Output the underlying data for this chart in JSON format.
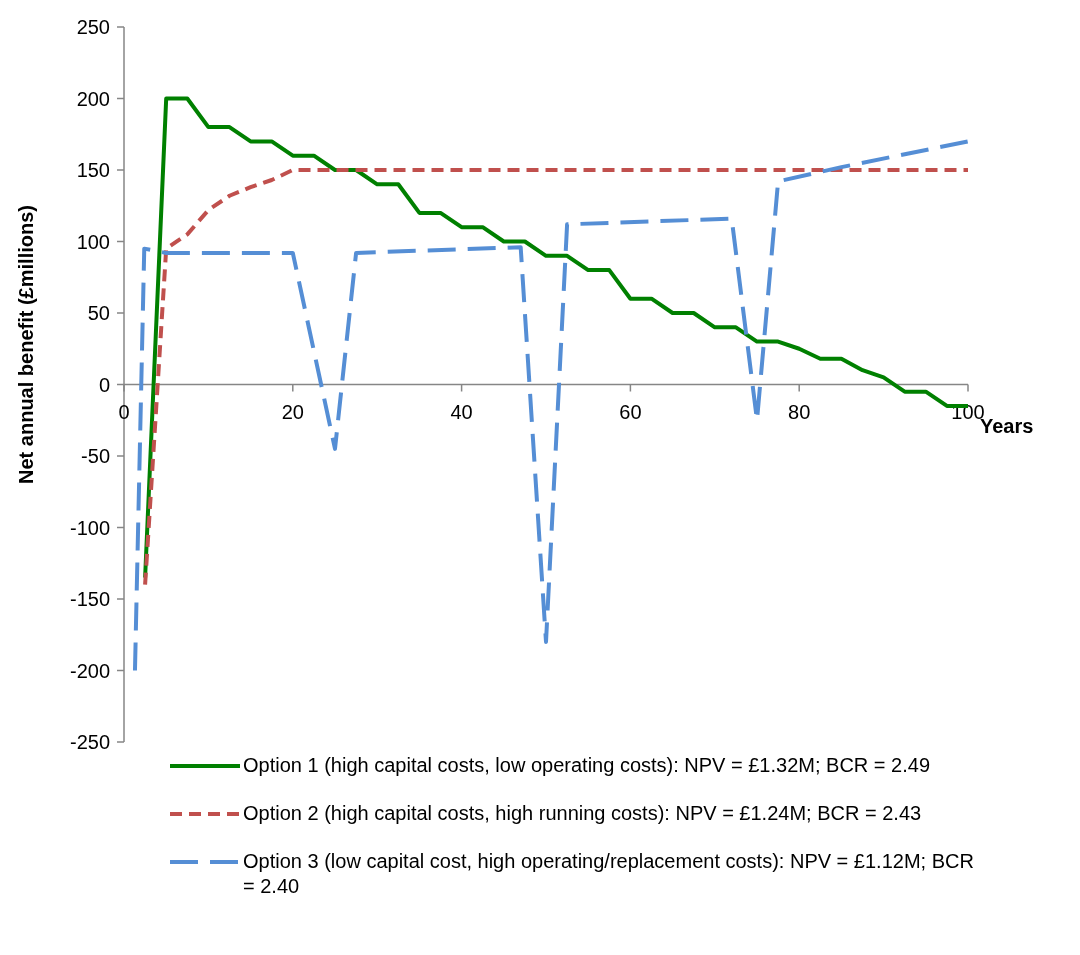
{
  "chart_data": {
    "type": "line",
    "xlabel": "Years",
    "ylabel": "Net annual benefit (£millions)",
    "xlim": [
      0,
      100
    ],
    "xticks": [
      0,
      20,
      40,
      60,
      80,
      100
    ],
    "ylim": [
      -250,
      250
    ],
    "yticks": [
      -250,
      -200,
      -150,
      -100,
      -50,
      0,
      50,
      100,
      150,
      200,
      250
    ],
    "grid": false,
    "legend": "bottom",
    "marker": "none",
    "series": [
      {
        "name": "Option 1 (high capital costs, low operating costs): NPV = £1.32M;  BCR = 2.49",
        "color": "#008000",
        "line_style": "solid",
        "x": [
          2.5,
          5,
          7.5,
          10,
          12.5,
          15,
          17.5,
          20,
          22.5,
          25,
          27.5,
          30,
          32.5,
          35,
          37.5,
          40,
          42.5,
          45,
          47.5,
          50,
          52.5,
          55,
          57.5,
          60,
          62.5,
          65,
          67.5,
          70,
          72.5,
          75,
          77.5,
          80,
          82.5,
          85,
          87.5,
          90,
          92.5,
          95,
          97.5,
          100
        ],
        "values": [
          -135,
          200,
          200,
          180,
          180,
          170,
          170,
          160,
          160,
          150,
          150,
          140,
          140,
          120,
          120,
          110,
          110,
          100,
          100,
          90,
          90,
          80,
          80,
          60,
          60,
          50,
          50,
          40,
          40,
          30,
          30,
          25,
          18,
          18,
          10,
          5,
          -5,
          -5,
          -15,
          -15
        ]
      },
      {
        "name": "Option 2 (high capital costs, high running costs): NPV = £1.24M; BCR = 2.43",
        "color": "#c0504d",
        "line_style": "dotted",
        "x": [
          2.5,
          5,
          7.5,
          10,
          12.5,
          15,
          17.5,
          20,
          25,
          30,
          40,
          50,
          60,
          70,
          80,
          90,
          100
        ],
        "values": [
          -140,
          95,
          105,
          122,
          132,
          138,
          143,
          150,
          150,
          150,
          150,
          150,
          150,
          150,
          150,
          150,
          150
        ]
      },
      {
        "name": "Option 3 (low capital cost, high operating/replacement costs): NPV = £1.12M; BCR = 2.40",
        "color": "#558ed5",
        "line_style": "dashed",
        "x": [
          1.3,
          2.4,
          5,
          20,
          25,
          27.5,
          47,
          50,
          52.5,
          72,
          75,
          77.5,
          85,
          100
        ],
        "values": [
          -200,
          95,
          92,
          92,
          -45,
          92,
          96,
          -180,
          112,
          116,
          -25,
          142,
          152,
          170
        ]
      }
    ]
  }
}
